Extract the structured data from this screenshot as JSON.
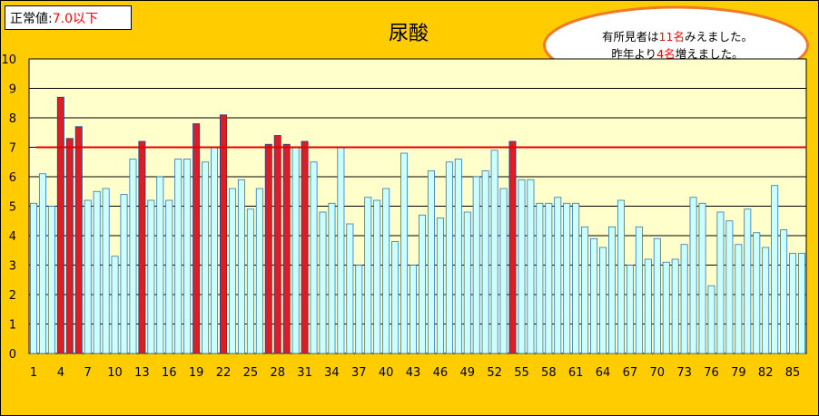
{
  "normal_value": {
    "label": "正常値:",
    "value": "7.0以下"
  },
  "callout": {
    "line1_pre": "有所見者は",
    "line1_num": "11名",
    "line1_post": "みえました。",
    "line2_pre": "昨年より",
    "line2_num": "4名",
    "line2_post": "増えました。"
  },
  "colors": {
    "background": "#FFCC00",
    "plot_area": "#FFFFCC",
    "bar_normal": "#CCFFFF",
    "bar_normal_border": "#2E75B6",
    "bar_abnormal": "#DD1C24",
    "bar_abnormal_border": "#1F3F8F",
    "threshold_line": "#E00000"
  },
  "chart_data": {
    "type": "bar",
    "title": "尿酸",
    "ylim": [
      0,
      10
    ],
    "yticks": [
      0,
      1,
      2,
      3,
      4,
      5,
      6,
      7,
      8,
      9,
      10
    ],
    "grid": true,
    "threshold": 7.0,
    "x_tick_labels": [
      "1",
      "4",
      "7",
      "10",
      "13",
      "16",
      "19",
      "22",
      "25",
      "28",
      "31",
      "34",
      "37",
      "40",
      "43",
      "46",
      "49",
      "52",
      "55",
      "58",
      "61",
      "64",
      "67",
      "70",
      "73",
      "76",
      "79",
      "82",
      "85"
    ],
    "categories": [
      1,
      2,
      3,
      4,
      5,
      6,
      7,
      8,
      9,
      10,
      11,
      12,
      13,
      14,
      15,
      16,
      17,
      18,
      19,
      20,
      21,
      22,
      23,
      24,
      25,
      26,
      27,
      28,
      29,
      30,
      31,
      32,
      33,
      34,
      35,
      36,
      37,
      38,
      39,
      40,
      41,
      42,
      43,
      44,
      45,
      46,
      47,
      48,
      49,
      50,
      51,
      52,
      53,
      54,
      55,
      56,
      57,
      58,
      59,
      60,
      61,
      62,
      63,
      64,
      65,
      66,
      67,
      68,
      69,
      70,
      71,
      72,
      73,
      74,
      75,
      76,
      77,
      78,
      79,
      80,
      81,
      82,
      83,
      84,
      85,
      86
    ],
    "values": [
      5.1,
      6.1,
      5.0,
      8.7,
      7.3,
      7.7,
      5.2,
      5.5,
      5.6,
      3.3,
      5.4,
      6.6,
      7.2,
      5.2,
      6.0,
      5.2,
      6.6,
      6.6,
      7.8,
      6.5,
      7.0,
      8.1,
      5.6,
      5.9,
      4.9,
      5.6,
      7.1,
      7.4,
      7.1,
      7.0,
      7.2,
      6.5,
      4.8,
      5.1,
      7.0,
      4.4,
      3.0,
      5.3,
      5.2,
      5.6,
      3.8,
      6.8,
      3.0,
      4.7,
      6.2,
      4.6,
      6.5,
      6.6,
      4.8,
      6.0,
      6.2,
      6.9,
      5.6,
      7.2,
      5.9,
      5.9,
      5.1,
      5.1,
      5.3,
      5.1,
      5.1,
      4.3,
      3.9,
      3.6,
      4.3,
      5.2,
      3.0,
      4.3,
      3.2,
      3.9,
      3.1,
      3.2,
      3.7,
      5.3,
      5.1,
      2.3,
      4.8,
      4.5,
      3.7,
      4.9,
      4.1,
      3.6,
      5.7,
      4.2,
      3.4,
      3.4
    ]
  }
}
